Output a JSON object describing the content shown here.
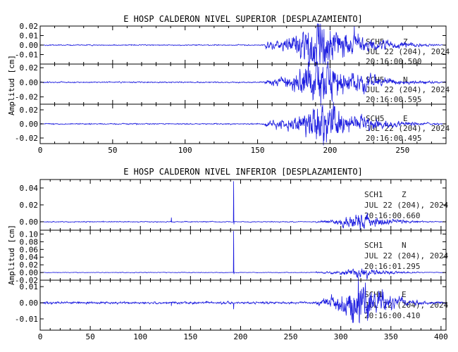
{
  "chart_data": [
    {
      "type": "line",
      "title": "E HOSP CALDERON NIVEL SUPERIOR [DESPLAZAMIENTO]",
      "ylabel": "Amplitud [cm]",
      "xlabel": "",
      "xlim": [
        0,
        280
      ],
      "xticks": [
        0,
        50,
        100,
        150,
        200,
        250
      ],
      "grid": false,
      "line_color": "#1a1adf",
      "traces": [
        {
          "station": "SCH5",
          "component": "Z",
          "date": "JUL 22 (204), 2024",
          "time": "20:16:00.500",
          "ylim": [
            -0.02,
            0.02
          ],
          "yticks": [
            0.02,
            0.01,
            0.0,
            -0.01
          ],
          "ytick_labels": [
            "0.02",
            "0.01",
            "0.00",
            "-0.01"
          ],
          "noise_amp": 0.0004,
          "events": [
            {
              "start": 155,
              "peak": 192,
              "end": 275,
              "amplitude": 0.024
            }
          ]
        },
        {
          "station": "SCH5",
          "component": "N",
          "date": "JUL 22 (204), 2024",
          "time": "20:16:00.595",
          "ylim": [
            -0.03,
            0.025
          ],
          "yticks": [
            0.02,
            0.0,
            -0.02
          ],
          "ytick_labels": [
            "0.02",
            "0.00",
            "-0.02"
          ],
          "noise_amp": 0.0006,
          "events": [
            {
              "start": 155,
              "peak": 193,
              "end": 275,
              "amplitude": 0.028
            }
          ]
        },
        {
          "station": "SCH5",
          "component": "E",
          "date": "JUL 22 (204), 2024",
          "time": "20:16:00.495",
          "ylim": [
            -0.028,
            0.028
          ],
          "yticks": [
            0.02,
            0.0,
            -0.02
          ],
          "ytick_labels": [
            "0.02",
            "0.00",
            "-0.02"
          ],
          "noise_amp": 0.0006,
          "events": [
            {
              "start": 155,
              "peak": 195,
              "end": 275,
              "amplitude": 0.026
            }
          ]
        }
      ]
    },
    {
      "type": "line",
      "title": "E HOSP CALDERON NIVEL INFERIOR [DESPLAZAMIENTO]",
      "ylabel": "Amplitud [cm]",
      "xlabel": "",
      "xlim": [
        0,
        405
      ],
      "xticks": [
        0,
        50,
        100,
        150,
        200,
        250,
        300,
        350,
        400
      ],
      "grid": false,
      "line_color": "#1a1adf",
      "traces": [
        {
          "station": "SCH1",
          "component": "Z",
          "date": "JUL 22 (204), 2024",
          "time": "20:16:00.660",
          "ylim": [
            -0.01,
            0.05
          ],
          "yticks": [
            0.04,
            0.02,
            0.0
          ],
          "ytick_labels": [
            "0.04",
            "0.02",
            "0.00"
          ],
          "noise_amp": 0.0004,
          "spikes": [
            {
              "x": 131,
              "value": 0.005
            },
            {
              "x": 193,
              "value": 0.048,
              "neg": -0.003
            }
          ],
          "events": [
            {
              "start": 275,
              "peak": 318,
              "end": 400,
              "amplitude": 0.009
            }
          ]
        },
        {
          "station": "SCH1",
          "component": "N",
          "date": "JUL 22 (204), 2024",
          "time": "20:16:01.295",
          "ylim": [
            -0.02,
            0.11
          ],
          "yticks": [
            0.1,
            0.08,
            0.06,
            0.04,
            0.02,
            0.0,
            -0.02
          ],
          "ytick_labels": [
            "0.10",
            "0.08",
            "0.06",
            "0.04",
            "0.02",
            "0.00",
            "-0.02"
          ],
          "noise_amp": 0.0006,
          "spikes": [
            {
              "x": 193,
              "value": 0.108,
              "neg": -0.004
            }
          ],
          "events": [
            {
              "start": 275,
              "peak": 320,
              "end": 400,
              "amplitude": 0.012
            }
          ]
        },
        {
          "station": "SCH1",
          "component": "E",
          "date": "JUL 22 (204), 2024",
          "time": "20:16:00.410",
          "ylim": [
            -0.017,
            0.014
          ],
          "yticks": [
            0.01,
            0.0,
            -0.01
          ],
          "ytick_labels": [
            "0.01",
            "0.00",
            "-0.01"
          ],
          "noise_amp": 0.0005,
          "spikes": [
            {
              "x": 131,
              "value": -0.002
            },
            {
              "x": 193,
              "value": -0.004
            }
          ],
          "events": [
            {
              "start": 275,
              "peak": 318,
              "end": 400,
              "amplitude": 0.013
            }
          ]
        }
      ]
    }
  ]
}
